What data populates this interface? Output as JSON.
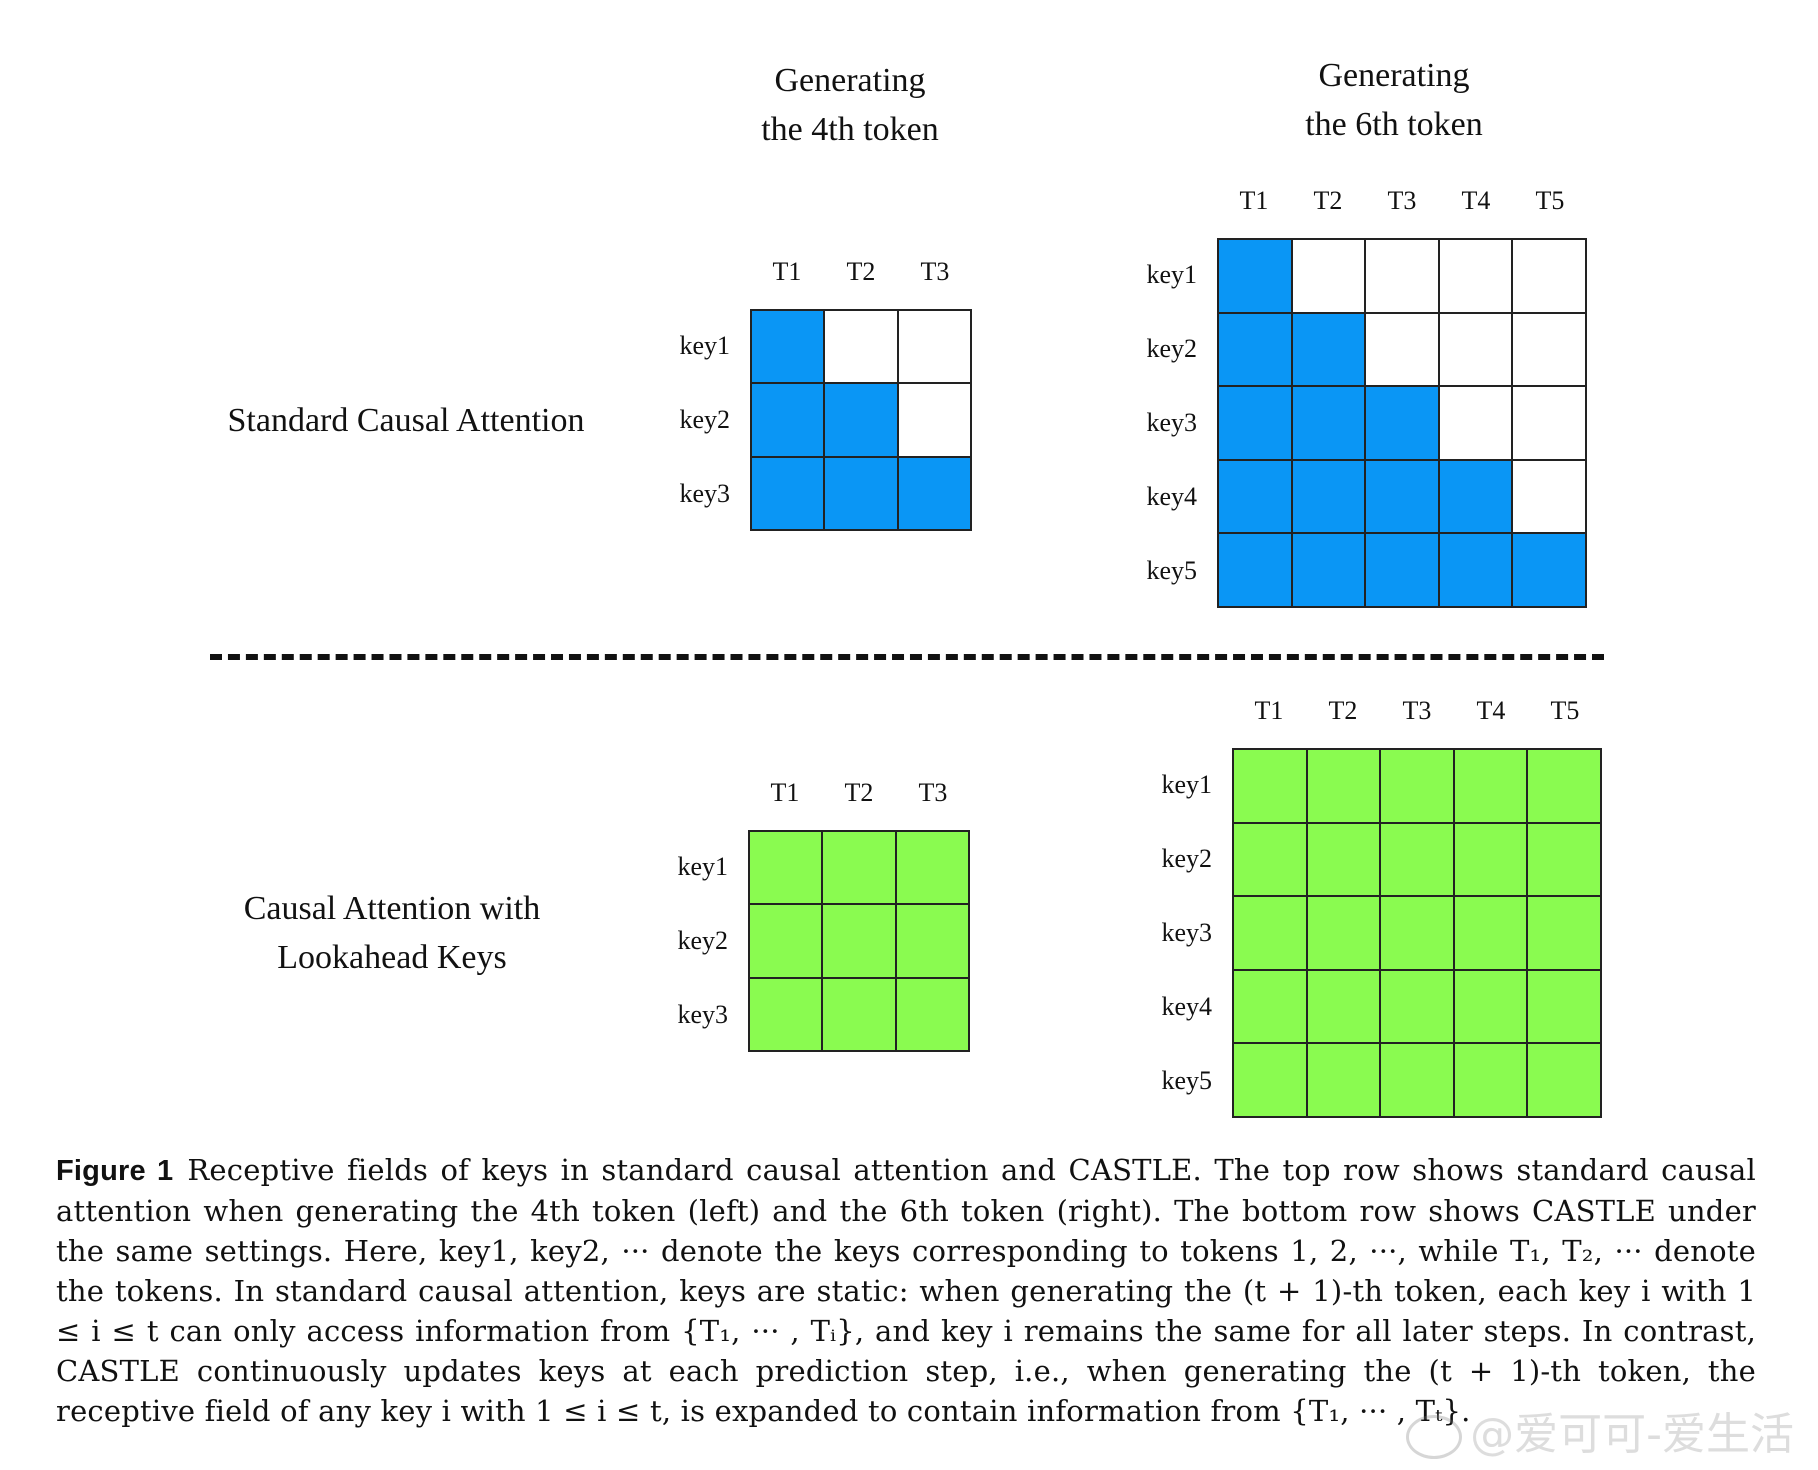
{
  "headers": {
    "left": [
      "Generating",
      "the 4th token"
    ],
    "right": [
      "Generating",
      "the 6th token"
    ]
  },
  "rows": {
    "top_title": [
      "Standard Causal Attention"
    ],
    "bottom_title": [
      "Causal Attention with",
      "Lookahead Keys"
    ]
  },
  "grids": {
    "top_left": {
      "cols": [
        "T1",
        "T2",
        "T3"
      ],
      "rows": [
        "key1",
        "key2",
        "key3"
      ],
      "pattern": [
        [
          1,
          0,
          0
        ],
        [
          1,
          1,
          0
        ],
        [
          1,
          1,
          1
        ]
      ]
    },
    "top_right": {
      "cols": [
        "T1",
        "T2",
        "T3",
        "T4",
        "T5"
      ],
      "rows": [
        "key1",
        "key2",
        "key3",
        "key4",
        "key5"
      ],
      "pattern": [
        [
          1,
          0,
          0,
          0,
          0
        ],
        [
          1,
          1,
          0,
          0,
          0
        ],
        [
          1,
          1,
          1,
          0,
          0
        ],
        [
          1,
          1,
          1,
          1,
          0
        ],
        [
          1,
          1,
          1,
          1,
          1
        ]
      ]
    },
    "bottom_left": {
      "cols": [
        "T1",
        "T2",
        "T3"
      ],
      "rows": [
        "key1",
        "key2",
        "key3"
      ],
      "pattern": [
        [
          1,
          1,
          1
        ],
        [
          1,
          1,
          1
        ],
        [
          1,
          1,
          1
        ]
      ]
    },
    "bottom_right": {
      "cols": [
        "T1",
        "T2",
        "T3",
        "T4",
        "T5"
      ],
      "rows": [
        "key1",
        "key2",
        "key3",
        "key4",
        "key5"
      ],
      "pattern": [
        [
          1,
          1,
          1,
          1,
          1
        ],
        [
          1,
          1,
          1,
          1,
          1
        ],
        [
          1,
          1,
          1,
          1,
          1
        ],
        [
          1,
          1,
          1,
          1,
          1
        ],
        [
          1,
          1,
          1,
          1,
          1
        ]
      ]
    }
  },
  "colors": {
    "blue": "#0a96f5",
    "green": "#8afb50",
    "white": "#ffffff"
  },
  "caption": {
    "label": "Figure 1",
    "text": "Receptive fields of keys in standard causal attention and CASTLE. The top row shows standard causal attention when generating the 4th token (left) and the 6th token (right). The bottom row shows CASTLE under the same settings. Here, key1, key2, ··· denote the keys corresponding to tokens 1, 2, ···, while T₁, T₂, ··· denote the tokens. In standard causal attention, keys are static: when generating the (t + 1)-th token, each key i with 1 ≤ i ≤ t can only access information from {T₁, ··· , Tᵢ}, and key i remains the same for all later steps. In contrast, CASTLE continuously updates keys at each prediction step, i.e., when generating the (t + 1)-th token, the receptive field of any key i with 1 ≤ i ≤ t, is expanded to contain information from {T₁, ··· , Tₜ}."
  },
  "watermark": "@爱可可-爱生活"
}
